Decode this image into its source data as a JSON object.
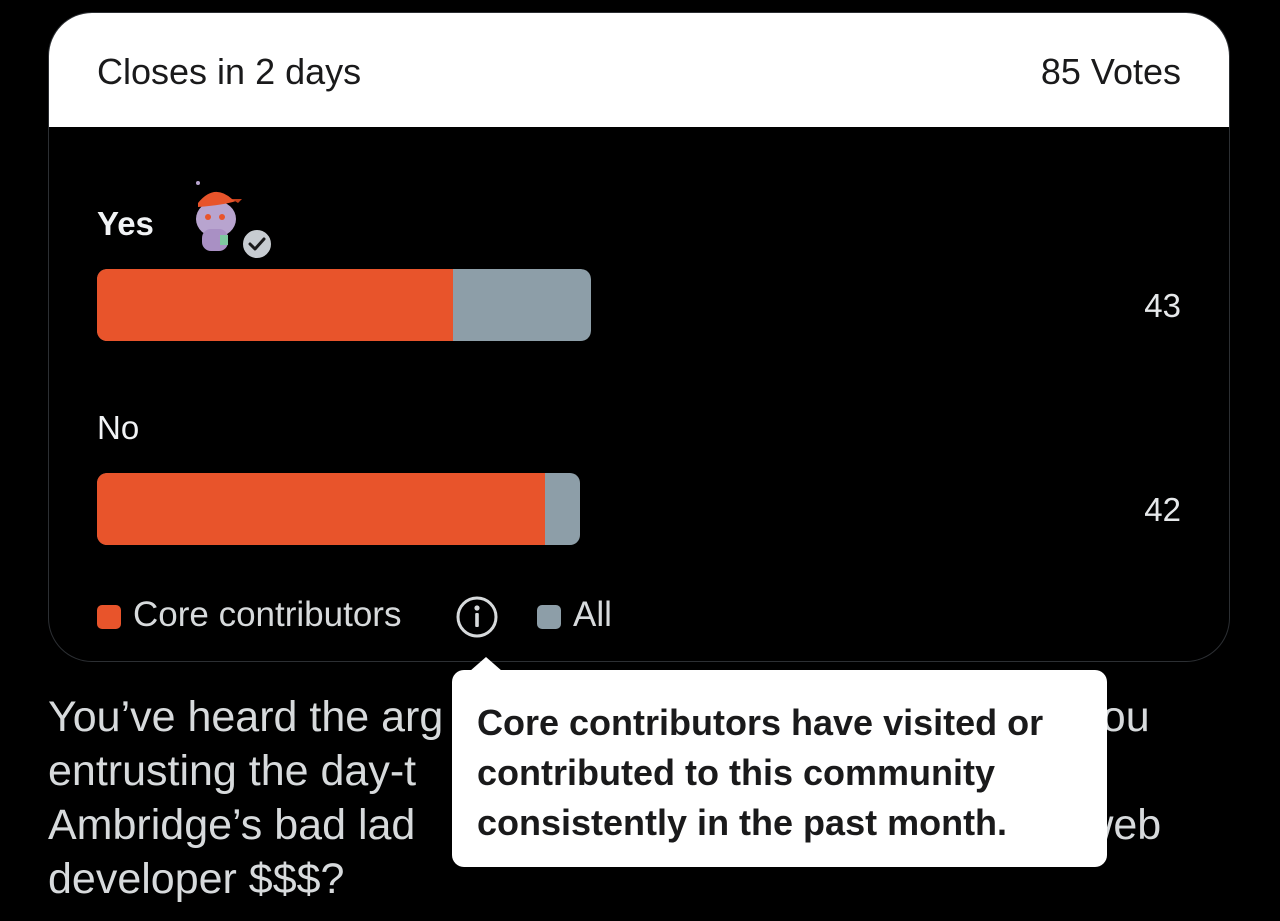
{
  "poll": {
    "closes_text": "Closes in 2 days",
    "votes_text": "85 Votes",
    "options": [
      {
        "label": "Yes",
        "count": "43",
        "core_fraction": 0.72,
        "all_fraction": 1.0,
        "has_avatar": true
      },
      {
        "label": "No",
        "count": "42",
        "core_fraction": 0.906,
        "all_fraction": 0.978
      }
    ],
    "legend": {
      "core_label": "Core contributors",
      "all_label": "All",
      "core_color": "#e8542b",
      "all_color": "#8d9ea8",
      "info_icon": "info-icon"
    }
  },
  "tooltip": {
    "text": "Core contributors have visited or contributed to this community consistently in the past month."
  },
  "post_body": {
    "text": "You’ve heard the arguments, now it’s time to decide: would you trust Ambridge’s bad lad Lynda Snell with the day-to-day running of Ambridge or is she just a web developer $$$?",
    "visible_lines": [
      "You’ve heard the arg",
      "you",
      "entrusting the day-t",
      "Ambridge’s bad lad",
      "web",
      "developer $$$?"
    ]
  }
}
